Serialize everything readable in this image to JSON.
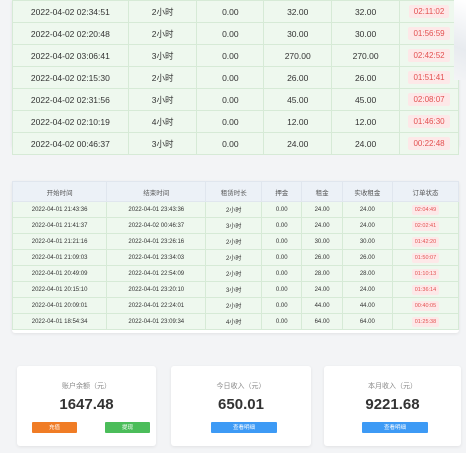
{
  "top_rows": [
    {
      "time": "2022-04-02 02:34:51",
      "duration": "2小时",
      "deposit": "0.00",
      "rent": "32.00",
      "actual": "32.00",
      "status": "02:11:02"
    },
    {
      "time": "2022-04-02 02:20:48",
      "duration": "2小时",
      "deposit": "0.00",
      "rent": "30.00",
      "actual": "30.00",
      "status": "01:56:59"
    },
    {
      "time": "2022-04-02 03:06:41",
      "duration": "3小时",
      "deposit": "0.00",
      "rent": "270.00",
      "actual": "270.00",
      "status": "02:42:52"
    },
    {
      "time": "2022-04-02 02:15:30",
      "duration": "2小时",
      "deposit": "0.00",
      "rent": "26.00",
      "actual": "26.00",
      "status": "01:51:41"
    },
    {
      "time": "2022-04-02 02:31:56",
      "duration": "3小时",
      "deposit": "0.00",
      "rent": "45.00",
      "actual": "45.00",
      "status": "02:08:07"
    },
    {
      "time": "2022-04-02 02:10:19",
      "duration": "4小时",
      "deposit": "0.00",
      "rent": "12.00",
      "actual": "12.00",
      "status": "01:46:30"
    },
    {
      "time": "2022-04-02 00:46:37",
      "duration": "3小时",
      "deposit": "0.00",
      "rent": "24.00",
      "actual": "24.00",
      "status": "00:22:48"
    }
  ],
  "mid_table": {
    "headers": [
      "开始时间",
      "结束时间",
      "租赁时长",
      "押金",
      "租金",
      "实收租金",
      "订单状态"
    ],
    "rows": [
      {
        "start": "2022-04-01 21:43:36",
        "end": "2022-04-01 23:43:36",
        "duration": "2小时",
        "deposit": "0.00",
        "rent": "24.00",
        "actual": "24.00",
        "status": "02:04:49"
      },
      {
        "start": "2022-04-01 21:41:37",
        "end": "2022-04-02 00:46:37",
        "duration": "3小时",
        "deposit": "0.00",
        "rent": "24.00",
        "actual": "24.00",
        "status": "02:02:41"
      },
      {
        "start": "2022-04-01 21:21:16",
        "end": "2022-04-01 23:26:16",
        "duration": "2小时",
        "deposit": "0.00",
        "rent": "30.00",
        "actual": "30.00",
        "status": "01:42:20"
      },
      {
        "start": "2022-04-01 21:09:03",
        "end": "2022-04-01 23:34:03",
        "duration": "2小时",
        "deposit": "0.00",
        "rent": "26.00",
        "actual": "26.00",
        "status": "01:50:07"
      },
      {
        "start": "2022-04-01 20:49:09",
        "end": "2022-04-01 22:54:09",
        "duration": "2小时",
        "deposit": "0.00",
        "rent": "28.00",
        "actual": "28.00",
        "status": "01:10:13"
      },
      {
        "start": "2022-04-01 20:15:10",
        "end": "2022-04-01 23:20:10",
        "duration": "3小时",
        "deposit": "0.00",
        "rent": "24.00",
        "actual": "24.00",
        "status": "01:36:14"
      },
      {
        "start": "2022-04-01 20:09:01",
        "end": "2022-04-01 22:24:01",
        "duration": "2小时",
        "deposit": "0.00",
        "rent": "44.00",
        "actual": "44.00",
        "status": "00:40:05"
      },
      {
        "start": "2022-04-01 18:54:34",
        "end": "2022-04-01 23:09:34",
        "duration": "4小时",
        "deposit": "0.00",
        "rent": "64.00",
        "actual": "64.00",
        "status": "01:25:38"
      }
    ]
  },
  "stats": {
    "balance": {
      "label": "账户余额（元）",
      "value": "1647.48",
      "recharge_label": "充值",
      "withdraw_label": "提现"
    },
    "today": {
      "label": "今日收入（元）",
      "value": "650.01",
      "detail_label": "查看明细"
    },
    "month": {
      "label": "本月收入（元）",
      "value": "9221.68",
      "detail_label": "查看明细"
    }
  },
  "colors": {
    "row_bg": "#eef8ee",
    "status_bg": "#fde8e8",
    "status_text": "#e35050",
    "btn_orange": "#f07c25",
    "btn_green": "#4bbd5a",
    "btn_blue": "#3d9af5"
  }
}
